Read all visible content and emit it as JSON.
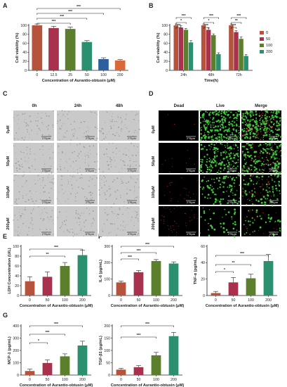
{
  "colors": {
    "c0": "#b5533c",
    "c50": "#a8324e",
    "c100": "#5b7f2c",
    "c200": "#2a9070",
    "blue": "#2c5f9c",
    "orange": "#d9683a"
  },
  "panel_labels": {
    "A": "A",
    "B": "B",
    "C": "C",
    "D": "D",
    "E": "E",
    "F": "F",
    "G": "G"
  },
  "panel_c": {
    "columns": [
      "0h",
      "24h",
      "48h"
    ],
    "rows": [
      "0μM",
      "50μM",
      "100μM",
      "200μM"
    ],
    "scale": "275μm"
  },
  "panel_d": {
    "columns": [
      "Dead",
      "Live",
      "Merge"
    ],
    "rows": [
      "0μM",
      "50μM",
      "100μM",
      "200μM"
    ],
    "scale": "275μm"
  },
  "chart_data": [
    {
      "id": "A",
      "type": "bar",
      "categories": [
        "0",
        "12.5",
        "25",
        "50",
        "100",
        "200"
      ],
      "values": [
        100,
        94,
        92,
        63,
        25,
        22
      ],
      "errors": [
        3,
        4,
        4,
        3,
        3,
        2
      ],
      "colors": [
        "#b5533c",
        "#a8324e",
        "#5b7f2c",
        "#2a9070",
        "#2c5f9c",
        "#d9683a"
      ],
      "xlabel": "Concentration of Aurantio-obtusin (μM)",
      "ylabel": "Cell viability (%)",
      "ylim": [
        0,
        100
      ],
      "yticks": [
        0,
        20,
        40,
        60,
        80,
        100
      ],
      "sig": [
        "***",
        "***",
        "***",
        "***"
      ]
    },
    {
      "id": "B",
      "type": "bar",
      "categories": [
        "24h",
        "48h",
        "72h"
      ],
      "series": [
        {
          "name": "0",
          "values": [
            100,
            100,
            100
          ],
          "errors": [
            3,
            3,
            3
          ]
        },
        {
          "name": "50",
          "values": [
            95,
            90,
            85
          ],
          "errors": [
            4,
            4,
            3
          ]
        },
        {
          "name": "100",
          "values": [
            90,
            78,
            70
          ],
          "errors": [
            3,
            3,
            4
          ]
        },
        {
          "name": "200",
          "values": [
            62,
            36,
            32
          ],
          "errors": [
            4,
            3,
            3
          ]
        }
      ],
      "xlabel": "Time(h)",
      "ylabel": "Cell viability (%)",
      "ylim": [
        0,
        100
      ],
      "yticks": [
        0,
        20,
        40,
        60,
        80,
        100
      ],
      "legend": "right",
      "sig": [
        "***",
        "*",
        "***",
        "***",
        "*",
        "***",
        "***",
        "**",
        "***"
      ]
    },
    {
      "id": "E",
      "type": "bar",
      "categories": [
        "0",
        "50",
        "100",
        "200"
      ],
      "values": [
        29,
        38,
        60,
        82
      ],
      "errors": [
        9,
        10,
        7,
        10
      ],
      "xlabel": "Concentration of Aurantio-obtusin (μM)",
      "ylabel": "LDH Concentration (U/L)",
      "ylim": [
        0,
        100
      ],
      "yticks": [
        0,
        20,
        40,
        60,
        80,
        100
      ],
      "sig": [
        "**",
        "***"
      ]
    },
    {
      "id": "F1",
      "type": "bar",
      "categories": [
        "0",
        "50",
        "100",
        "200"
      ],
      "values": [
        80,
        142,
        210,
        195
      ],
      "errors": [
        8,
        10,
        9,
        10
      ],
      "xlabel": "Concentration of Aurantio-obtusin (μM)",
      "ylabel": "IL-6 (pg/mL)",
      "ylim": [
        0,
        300
      ],
      "yticks": [
        0,
        100,
        200,
        300
      ],
      "sig": [
        "***",
        "***",
        "***"
      ]
    },
    {
      "id": "F2",
      "type": "bar",
      "categories": [
        "0",
        "50",
        "100",
        "200"
      ],
      "values": [
        3,
        16,
        21,
        42
      ],
      "errors": [
        2,
        6,
        5,
        8
      ],
      "xlabel": "Concentration of Aurantio-obtusin (μM)",
      "ylabel": "TNF-α (pg/mL)",
      "ylim": [
        0,
        60
      ],
      "yticks": [
        0,
        20,
        40,
        60
      ],
      "sig": [
        "*",
        "**",
        "***"
      ]
    },
    {
      "id": "G1",
      "type": "bar",
      "categories": [
        "0",
        "50",
        "100",
        "200"
      ],
      "values": [
        33,
        98,
        152,
        240
      ],
      "errors": [
        15,
        25,
        20,
        35
      ],
      "xlabel": "Concentration of Aurantio-obtusin (μM)",
      "ylabel": "MCP-1 (pg/mL)",
      "ylim": [
        0,
        400
      ],
      "yticks": [
        0,
        100,
        200,
        300,
        400
      ],
      "sig": [
        "*",
        "***",
        "***"
      ]
    },
    {
      "id": "G2",
      "type": "bar",
      "categories": [
        "0",
        "50",
        "100",
        "200"
      ],
      "values": [
        22,
        32,
        80,
        158
      ],
      "errors": [
        5,
        6,
        12,
        15
      ],
      "xlabel": "Concentration of Aurantio-obtusin (μM)",
      "ylabel": "TGF-β1 (pg/mL)",
      "ylim": [
        0,
        200
      ],
      "yticks": [
        0,
        50,
        100,
        150,
        200
      ],
      "sig": [
        "***",
        "***"
      ]
    }
  ]
}
